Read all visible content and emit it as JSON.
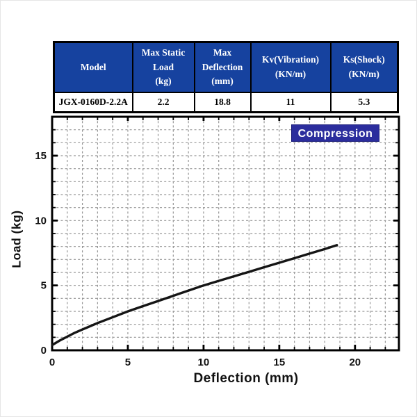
{
  "page": {
    "background": "#ffffff"
  },
  "spec_table": {
    "header_bg": "#16429f",
    "header_text_color": "#ffffff",
    "headers": [
      "Model",
      "Max Static\nLoad\n(kg)",
      "Max\nDeflection\n(mm)",
      "Kv(Vibration)\n(KN/m)",
      "Ks(Shock)\n(KN/m)"
    ],
    "row": {
      "model": "JGX-0160D-2.2A",
      "max_static_load_kg": "2.2",
      "max_deflection_mm": "18.8",
      "kv_vibration_kn_m": "11",
      "ks_shock_kn_m": "5.3"
    }
  },
  "chart_data": {
    "type": "line",
    "title": "",
    "legend_label": "Compression",
    "legend_bg": "#2b2d9d",
    "legend_text_color": "#ffffff",
    "legend_position": "top-right",
    "xlabel": "Deflection (mm)",
    "ylabel": "Load (kg)",
    "xlim": [
      0,
      22.9
    ],
    "ylim": [
      0,
      18
    ],
    "x_major_ticks": [
      0,
      5,
      10,
      15,
      20
    ],
    "y_major_ticks": [
      0,
      5,
      10,
      15
    ],
    "minor_tick_step": 1,
    "grid": {
      "style": "dashed",
      "spacing": 1,
      "color": "#969696"
    },
    "frame_color": "#000000",
    "line_color": "#151515",
    "series": [
      {
        "name": "Compression",
        "x": [
          0,
          0.5,
          1,
          1.5,
          2,
          3,
          4,
          5,
          6,
          7,
          8,
          9,
          10,
          11,
          12,
          13,
          14,
          15,
          16,
          17,
          18,
          18.8
        ],
        "y": [
          0.4,
          0.75,
          1.05,
          1.35,
          1.6,
          2.1,
          2.55,
          3.0,
          3.4,
          3.8,
          4.2,
          4.6,
          5.0,
          5.35,
          5.7,
          6.05,
          6.4,
          6.75,
          7.1,
          7.45,
          7.8,
          8.1
        ]
      }
    ]
  }
}
